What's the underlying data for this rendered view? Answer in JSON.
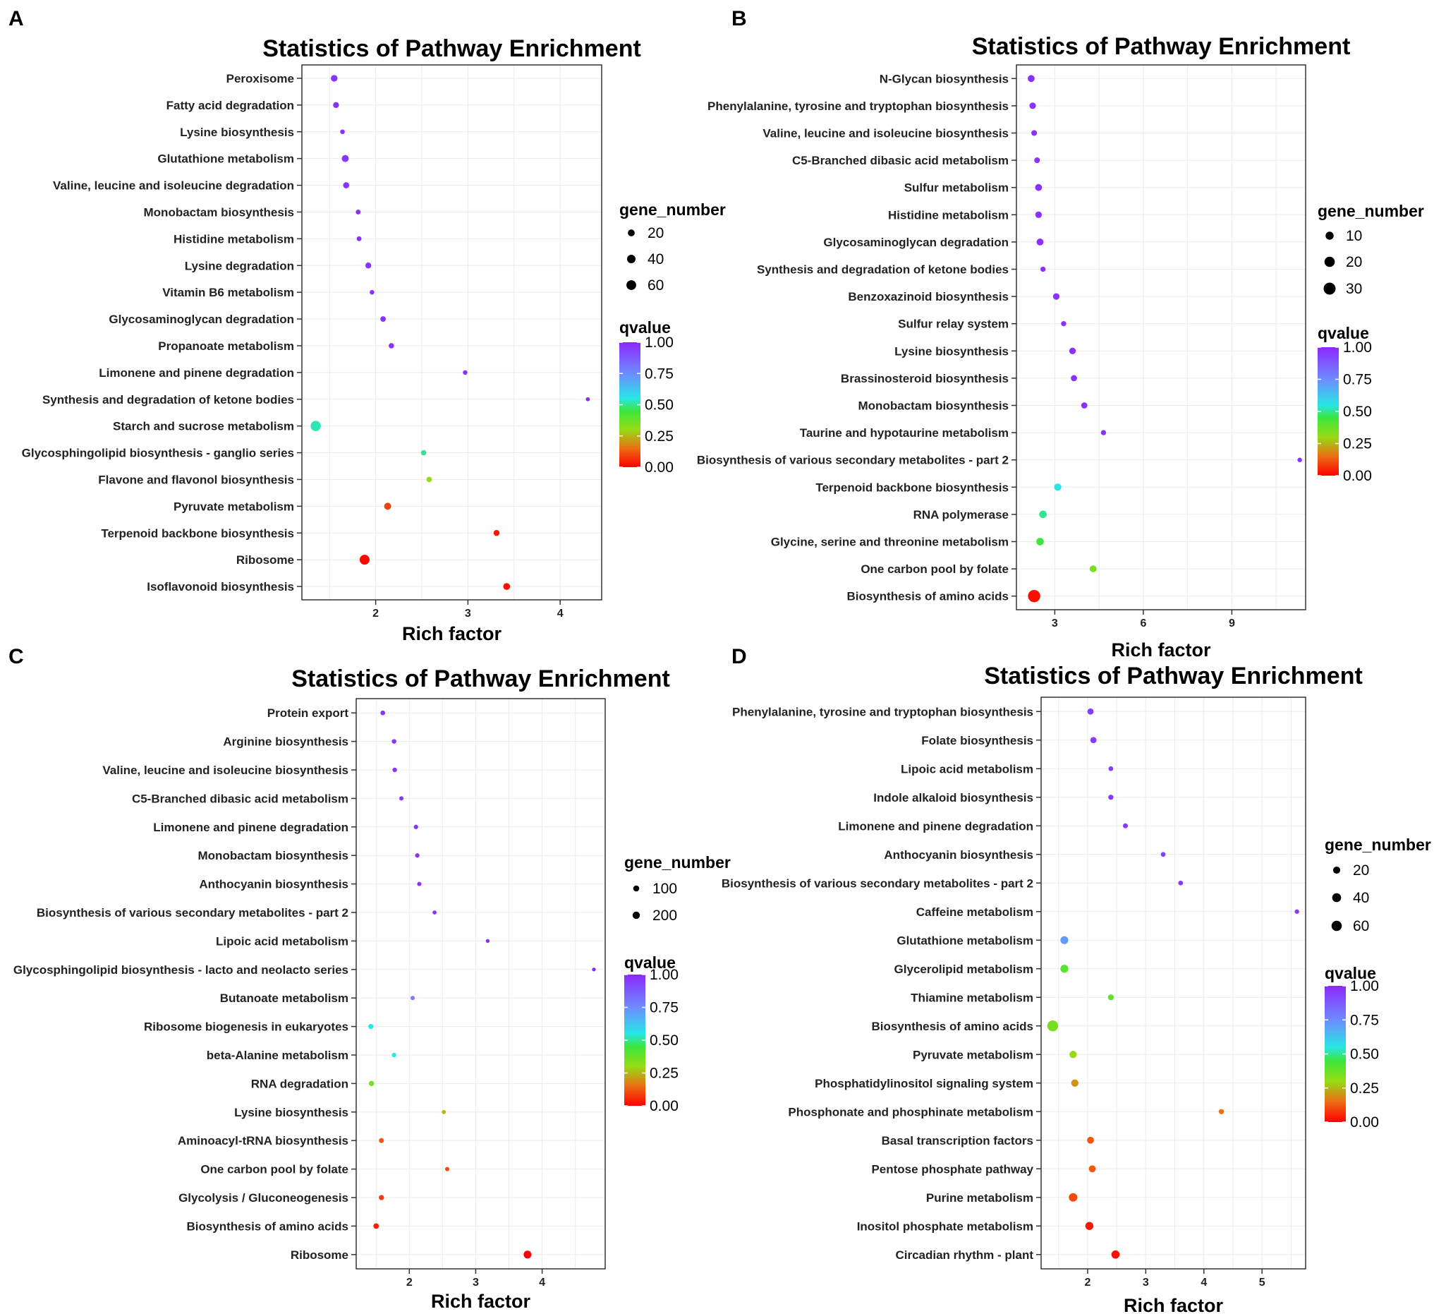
{
  "chart_data": [
    {
      "panel": "A",
      "type": "scatter",
      "title": "Statistics of Pathway Enrichment",
      "xlabel": "Rich factor",
      "ylabel": "",
      "xlim": [
        1.2,
        4.45
      ],
      "xticks": [
        2,
        3,
        4
      ],
      "categories": [
        "Peroxisome",
        "Fatty acid degradation",
        "Lysine biosynthesis",
        "Glutathione metabolism",
        "Valine, leucine and isoleucine degradation",
        "Monobactam biosynthesis",
        "Histidine metabolism",
        "Lysine degradation",
        "Vitamin B6 metabolism",
        "Glycosaminoglycan degradation",
        "Propanoate metabolism",
        "Limonene and pinene degradation",
        "Synthesis and degradation of ketone bodies",
        "Starch and sucrose metabolism",
        "Glycosphingolipid biosynthesis - ganglio series",
        "Flavone and flavonol biosynthesis",
        "Pyruvate metabolism",
        "Terpenoid backbone biosynthesis",
        "Ribosome",
        "Isoflavonoid biosynthesis"
      ],
      "rich_factor": [
        1.55,
        1.57,
        1.64,
        1.67,
        1.68,
        1.81,
        1.82,
        1.92,
        1.96,
        2.08,
        2.17,
        2.97,
        4.3,
        1.35,
        2.52,
        2.58,
        2.13,
        3.31,
        1.88,
        3.42
      ],
      "gene_number": [
        18,
        12,
        4,
        22,
        14,
        5,
        5,
        12,
        4,
        9,
        8,
        4,
        2,
        68,
        8,
        8,
        22,
        12,
        62,
        20
      ],
      "qvalue": [
        0.97,
        0.97,
        0.98,
        0.96,
        0.97,
        0.98,
        0.98,
        0.97,
        0.98,
        0.98,
        0.98,
        0.98,
        1.0,
        0.52,
        0.5,
        0.3,
        0.09,
        0.03,
        0.01,
        0.02
      ],
      "legend": {
        "size_title": "gene_number",
        "size_labels": [
          "20",
          "40",
          "60"
        ],
        "size_values": [
          20,
          40,
          60
        ],
        "color_title": "qvalue",
        "color_labels": [
          "1.00",
          "0.75",
          "0.50",
          "0.25",
          "0.00"
        ]
      }
    },
    {
      "panel": "B",
      "type": "scatter",
      "title": "Statistics of Pathway Enrichment",
      "xlabel": "Rich factor",
      "ylabel": "",
      "xlim": [
        1.7,
        11.5
      ],
      "xticks": [
        3,
        6,
        9
      ],
      "categories": [
        "N-Glycan biosynthesis",
        "Phenylalanine, tyrosine and tryptophan biosynthesis",
        "Valine, leucine and isoleucine biosynthesis",
        "C5-Branched dibasic acid metabolism",
        "Sulfur metabolism",
        "Histidine metabolism",
        "Glycosaminoglycan degradation",
        "Synthesis and degradation of ketone bodies",
        "Benzoxazinoid biosynthesis",
        "Sulfur relay system",
        "Lysine biosynthesis",
        "Brassinosteroid biosynthesis",
        "Monobactam biosynthesis",
        "Taurine and hypotaurine metabolism",
        "Biosynthesis of various secondary metabolites - part 2",
        "Terpenoid backbone biosynthesis",
        "RNA polymerase",
        "Glycine, serine and threonine metabolism",
        "One carbon pool by folate",
        "Biosynthesis of amino acids"
      ],
      "rich_factor": [
        2.2,
        2.25,
        2.3,
        2.4,
        2.45,
        2.45,
        2.5,
        2.6,
        3.05,
        3.3,
        3.6,
        3.65,
        4.0,
        4.65,
        11.3,
        3.1,
        2.6,
        2.5,
        4.3,
        2.3
      ],
      "gene_number": [
        6,
        5,
        3,
        3,
        6,
        5,
        6,
        2,
        5,
        2,
        5,
        4,
        4,
        2,
        1,
        7,
        8,
        8,
        6,
        32
      ],
      "qvalue": [
        0.98,
        0.98,
        0.98,
        0.98,
        0.98,
        0.98,
        0.98,
        0.98,
        0.98,
        0.98,
        0.98,
        0.98,
        0.98,
        0.98,
        0.98,
        0.55,
        0.5,
        0.45,
        0.35,
        0.02
      ],
      "legend": {
        "size_title": "gene_number",
        "size_labels": [
          "10",
          "20",
          "30"
        ],
        "size_values": [
          10,
          20,
          30
        ],
        "color_title": "qvalue",
        "color_labels": [
          "1.00",
          "0.75",
          "0.50",
          "0.25",
          "0.00"
        ]
      }
    },
    {
      "panel": "C",
      "type": "scatter",
      "title": "Statistics of Pathway Enrichment",
      "xlabel": "Rich factor",
      "ylabel": "",
      "xlim": [
        1.2,
        4.95
      ],
      "xticks": [
        2,
        3,
        4
      ],
      "categories": [
        "Protein export",
        "Arginine biosynthesis",
        "Valine, leucine and isoleucine biosynthesis",
        "C5-Branched dibasic acid metabolism",
        "Limonene and pinene degradation",
        "Monobactam biosynthesis",
        "Anthocyanin biosynthesis",
        "Biosynthesis of various secondary metabolites - part 2",
        "Lipoic acid metabolism",
        "Glycosphingolipid biosynthesis - lacto and neolacto series",
        "Butanoate metabolism",
        "Ribosome biogenesis in eukaryotes",
        "beta-Alanine metabolism",
        "RNA degradation",
        "Lysine biosynthesis",
        "Aminoacyl-tRNA biosynthesis",
        "One carbon pool by folate",
        "Glycolysis / Gluconeogenesis",
        "Biosynthesis of amino acids",
        "Ribosome"
      ],
      "rich_factor": [
        1.6,
        1.77,
        1.78,
        1.88,
        2.1,
        2.12,
        2.15,
        2.38,
        3.18,
        4.78,
        2.05,
        1.42,
        1.77,
        1.43,
        2.52,
        1.58,
        2.57,
        1.58,
        1.5,
        3.78
      ],
      "gene_number": [
        35,
        30,
        30,
        20,
        25,
        25,
        20,
        15,
        10,
        8,
        20,
        50,
        25,
        60,
        15,
        45,
        20,
        55,
        70,
        240
      ],
      "qvalue": [
        0.97,
        0.97,
        0.97,
        0.98,
        0.97,
        0.97,
        0.97,
        0.98,
        0.98,
        1.0,
        0.78,
        0.55,
        0.55,
        0.35,
        0.25,
        0.12,
        0.1,
        0.08,
        0.04,
        0.0
      ],
      "legend": {
        "size_title": "gene_number",
        "size_labels": [
          "100",
          "200"
        ],
        "size_values": [
          100,
          200
        ],
        "color_title": "qvalue",
        "color_labels": [
          "1.00",
          "0.75",
          "0.50",
          "0.25",
          "0.00"
        ]
      }
    },
    {
      "panel": "D",
      "type": "scatter",
      "title": "Statistics of Pathway Enrichment",
      "xlabel": "Rich factor",
      "ylabel": "",
      "xlim": [
        1.2,
        5.75
      ],
      "xticks": [
        2,
        3,
        4,
        5
      ],
      "categories": [
        "Phenylalanine, tyrosine and tryptophan biosynthesis",
        "Folate biosynthesis",
        "Lipoic acid metabolism",
        "Indole alkaloid biosynthesis",
        "Limonene and pinene degradation",
        "Anthocyanin biosynthesis",
        "Biosynthesis of various secondary metabolites - part 2",
        "Caffeine metabolism",
        "Glutathione metabolism",
        "Glycerolipid metabolism",
        "Thiamine metabolism",
        "Biosynthesis of amino acids",
        "Pyruvate metabolism",
        "Phosphatidylinositol signaling system",
        "Phosphonate and phosphinate metabolism",
        "Basal transcription factors",
        "Pentose phosphate pathway",
        "Purine metabolism",
        "Inositol phosphate metabolism",
        "Circadian rhythm - plant"
      ],
      "rich_factor": [
        2.05,
        2.1,
        2.4,
        2.4,
        2.65,
        3.3,
        3.6,
        5.6,
        1.6,
        1.6,
        2.4,
        1.4,
        1.75,
        1.78,
        4.3,
        2.05,
        2.08,
        1.75,
        2.03,
        2.48
      ],
      "gene_number": [
        12,
        12,
        4,
        6,
        5,
        4,
        4,
        3,
        28,
        28,
        10,
        70,
        22,
        22,
        6,
        18,
        18,
        35,
        30,
        32
      ],
      "qvalue": [
        0.95,
        0.95,
        0.95,
        0.95,
        0.95,
        0.95,
        0.95,
        0.95,
        0.72,
        0.4,
        0.38,
        0.35,
        0.3,
        0.2,
        0.15,
        0.12,
        0.12,
        0.1,
        0.03,
        0.02
      ],
      "legend": {
        "size_title": "gene_number",
        "size_labels": [
          "20",
          "40",
          "60"
        ],
        "size_values": [
          20,
          40,
          60
        ],
        "color_title": "qvalue",
        "color_labels": [
          "1.00",
          "0.75",
          "0.50",
          "0.25",
          "0.00"
        ]
      }
    }
  ]
}
